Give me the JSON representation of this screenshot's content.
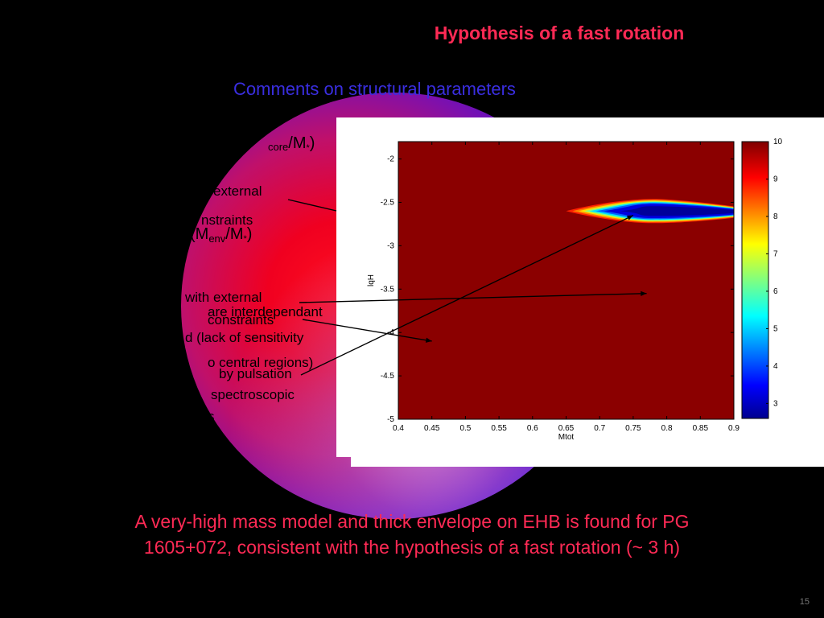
{
  "slide": {
    "title": "Hypothesis of a fast rotation",
    "subtitle": "Comments on structural parameters",
    "conclusion_line1": "A very-high mass model and thick envelope on EHB is found for PG",
    "conclusion_line2": "1605+072, consistent with the hypothesis of a fast rotation (~ 3 h)",
    "slide_number": "15"
  },
  "bg_text": {
    "mcore": "core",
    "mcore_frac": "/M",
    "mcore_star": "*",
    "mcore_close": ")",
    "external1": "external",
    "constraints1": "nstraints",
    "menv_open": "(M",
    "menv_sub": "env",
    "menv_frac": "/M",
    "menv_star": "*",
    "menv_close": ")",
    "with_external": "with external",
    "are_interdependant": "are interdependant",
    "constraints2": "constraints",
    "lack_sensitivity": "d (lack of sensitivity",
    "central_regions": "o central regions)",
    "by_pulsation": "by pulsation",
    "spectroscopic": "spectroscopic",
    "s_fragment": "s"
  },
  "colors": {
    "title": "#ff2a55",
    "subtitle": "#3a2ee0",
    "plot_background": "#8b0000"
  },
  "chart_data": {
    "type": "heatmap",
    "xlabel": "Mtot",
    "ylabel": "lqH",
    "xlim": [
      0.4,
      0.9
    ],
    "ylim": [
      -5,
      -1.8
    ],
    "xticks": [
      "0.4",
      "0.45",
      "0.5",
      "0.55",
      "0.6",
      "0.65",
      "0.7",
      "0.75",
      "0.8",
      "0.85",
      "0.9"
    ],
    "yticks": [
      "-2",
      "-2.5",
      "-3",
      "-3.5",
      "-4",
      "-4.5",
      "-5"
    ],
    "colorbar": {
      "min": 2.6,
      "max": 10,
      "ticks": [
        "10",
        "9",
        "8",
        "7",
        "6",
        "5",
        "4",
        "3"
      ]
    },
    "minimum_region": {
      "Mtot_range": [
        0.65,
        0.9
      ],
      "lqH_center": -2.6,
      "min_value": 3,
      "background_value": 10
    },
    "arrow_targets": [
      {
        "Mtot": 0.75,
        "lqH": -2.65
      },
      {
        "Mtot": 0.77,
        "lqH": -3.55
      },
      {
        "Mtot": 0.45,
        "lqH": -4.1
      }
    ]
  }
}
